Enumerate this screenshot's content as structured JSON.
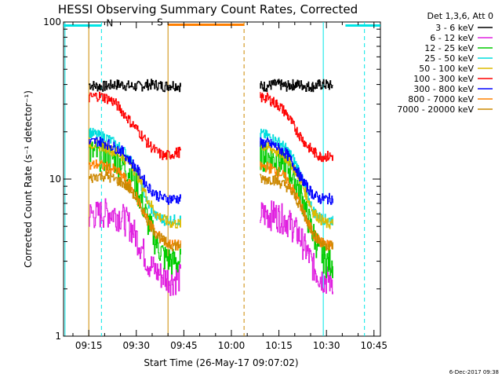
{
  "chart_data": {
    "type": "line",
    "title": "HESSI Observing Summary Count Rates, Corrected",
    "xlabel": "Start Time (26-May-17 09:07:02)",
    "ylabel": "Corrected Count Rate (s⁻¹ detector⁻¹)",
    "y_scale": "log",
    "ylim": [
      1,
      100
    ],
    "xlim": [
      "09:07:02",
      "10:47:02"
    ],
    "x_ticks": [
      "09:15",
      "09:30",
      "09:45",
      "10:00",
      "10:15",
      "10:30",
      "10:45"
    ],
    "y_ticks": [
      "1",
      "10",
      "100"
    ],
    "legend_title": "Det 1,3,6, Att 0",
    "legend_position": "right",
    "timestamp": "6-Dec-2017 09:38",
    "flags": [
      {
        "label": "N",
        "start": "09:07:02",
        "end": "09:19",
        "color": "#00e6e6",
        "y": 95
      },
      {
        "label": "S",
        "start": "09:40",
        "end": "10:04",
        "color": "#ff7f00",
        "y": 96
      },
      {
        "label": "",
        "start": "10:36",
        "end": "10:47",
        "color": "#00e6e6",
        "y": 95
      }
    ],
    "vlines": [
      {
        "time": "09:07:30",
        "color": "#00e6e6",
        "style": "solid"
      },
      {
        "time": "09:19",
        "color": "#00e6e6",
        "style": "dashed"
      },
      {
        "time": "09:15",
        "color": "#cc8800",
        "style": "solid"
      },
      {
        "time": "09:40",
        "color": "#cc8800",
        "style": "solid"
      },
      {
        "time": "10:04",
        "color": "#cc8800",
        "style": "dashed"
      },
      {
        "time": "10:29",
        "color": "#00e6e6",
        "style": "solid"
      },
      {
        "time": "10:42",
        "color": "#00e6e6",
        "style": "dashed"
      }
    ],
    "segments": [
      {
        "start": "09:15",
        "end": "09:44"
      },
      {
        "start": "10:09",
        "end": "10:32"
      }
    ],
    "series": [
      {
        "name": "3 - 6 keV",
        "color": "#000000",
        "values": [
          [
            40,
            39,
            39,
            40,
            40,
            39,
            39,
            40,
            40,
            39,
            40,
            39
          ],
          [
            39,
            39,
            40,
            40,
            39,
            40,
            40,
            39,
            39,
            40,
            40,
            39
          ]
        ]
      },
      {
        "name": "6 - 12 keV",
        "color": "#e020e0",
        "values": [
          [
            6,
            6,
            6.2,
            6.1,
            5.8,
            5,
            4,
            3,
            2.6,
            2.4,
            2.3,
            2.4
          ],
          [
            6,
            6,
            6,
            5.8,
            5.5,
            5,
            4.3,
            3.5,
            2.8,
            2.4,
            2.3,
            2.3
          ]
        ]
      },
      {
        "name": "12 - 25 keV",
        "color": "#00cc00",
        "values": [
          [
            15,
            14.5,
            14,
            13.5,
            12.5,
            11,
            8,
            5.5,
            4,
            3.2,
            3,
            3
          ],
          [
            14.5,
            14,
            13.5,
            13,
            12,
            10.5,
            8.5,
            6,
            4.5,
            3.5,
            3,
            3
          ]
        ]
      },
      {
        "name": "25 - 50 keV",
        "color": "#00dddd",
        "values": [
          [
            20,
            19,
            18.5,
            17,
            15.5,
            13,
            10,
            7,
            5.8,
            5.5,
            5.5,
            5.5
          ],
          [
            19.5,
            19,
            18,
            17,
            15.5,
            13.5,
            11,
            8,
            6.3,
            5.7,
            5.5,
            5.5
          ]
        ]
      },
      {
        "name": "50 - 100 keV",
        "color": "#ddbb00",
        "values": [
          [
            17,
            16.5,
            16,
            15,
            14,
            12.5,
            10,
            7.5,
            6,
            5.5,
            5.2,
            5.2
          ],
          [
            16.5,
            16,
            15.5,
            14.5,
            13.5,
            12,
            10,
            7.8,
            6.2,
            5.6,
            5.2,
            5.2
          ]
        ]
      },
      {
        "name": "100 - 300 keV",
        "color": "#ff0000",
        "values": [
          [
            33,
            34,
            33,
            31,
            27,
            23,
            20,
            17,
            15,
            14,
            14.5,
            15
          ],
          [
            33,
            33,
            31,
            29,
            26,
            22,
            19,
            16.5,
            15,
            14,
            14,
            14
          ]
        ]
      },
      {
        "name": "300 - 800 keV",
        "color": "#0000ff",
        "values": [
          [
            17,
            17.5,
            17,
            16,
            15,
            13,
            11,
            9,
            8,
            7.5,
            7.5,
            7.5
          ],
          [
            17,
            17,
            16.5,
            15.5,
            14.5,
            12.5,
            10.5,
            9,
            8,
            7.5,
            7.5,
            7.5
          ]
        ]
      },
      {
        "name": "800 - 7000 keV",
        "color": "#ff8000",
        "values": [
          [
            12,
            12.5,
            12,
            11.5,
            10.5,
            9,
            7,
            5.5,
            4.5,
            4,
            3.8,
            3.8
          ],
          [
            12,
            12,
            11.5,
            11,
            10,
            8.5,
            7,
            5.5,
            4.5,
            4,
            3.8,
            3.8
          ]
        ]
      },
      {
        "name": "7000 - 20000 keV",
        "color": "#cc8800",
        "values": [
          [
            10,
            10.5,
            10.5,
            10,
            9.5,
            8.5,
            7,
            5.5,
            4.5,
            4,
            3.8,
            3.8
          ],
          [
            10,
            10,
            10,
            9.5,
            9,
            8,
            6.8,
            5.5,
            4.5,
            4,
            3.8,
            3.8
          ]
        ]
      }
    ]
  }
}
